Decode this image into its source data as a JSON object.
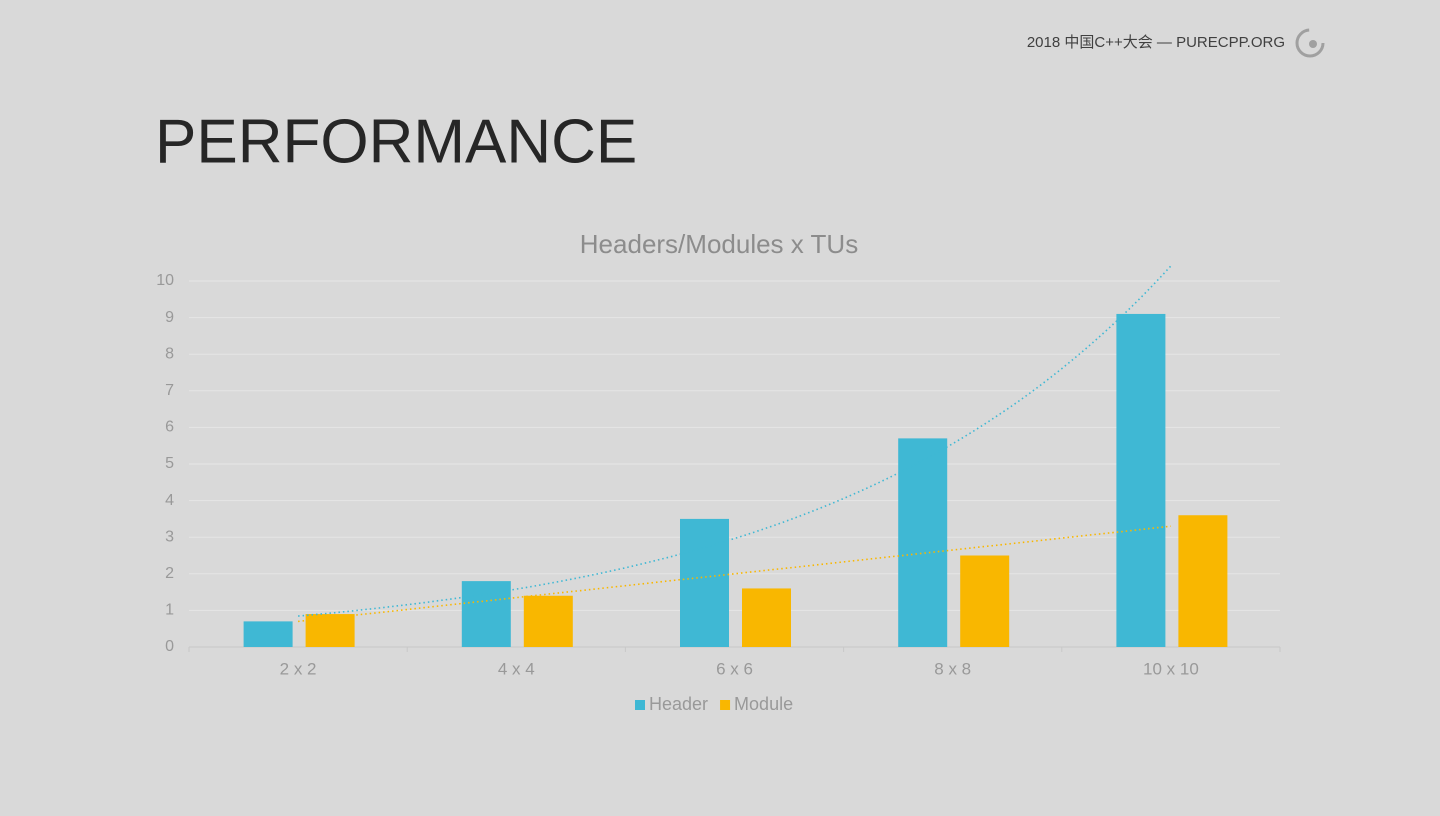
{
  "header": {
    "event": "2018 中国C++大会 — PURECPP.ORG"
  },
  "slide_title": "PERFORMANCE",
  "chart_data": {
    "type": "bar",
    "title": "Headers/Modules x TUs",
    "categories": [
      "2 x 2",
      "4 x 4",
      "6 x 6",
      "8 x 8",
      "10 x 10"
    ],
    "series": [
      {
        "name": "Header",
        "color": "#3fb8d4",
        "values": [
          0.7,
          1.8,
          3.5,
          5.7,
          9.1
        ],
        "trendline": "exponential"
      },
      {
        "name": "Module",
        "color": "#f9b700",
        "values": [
          0.9,
          1.4,
          1.6,
          2.5,
          3.6
        ],
        "trendline": "linear"
      }
    ],
    "ylim": [
      0,
      10
    ],
    "yticks": [
      0,
      1,
      2,
      3,
      4,
      5,
      6,
      7,
      8,
      9,
      10
    ],
    "grid": true,
    "legend": "bottom"
  }
}
